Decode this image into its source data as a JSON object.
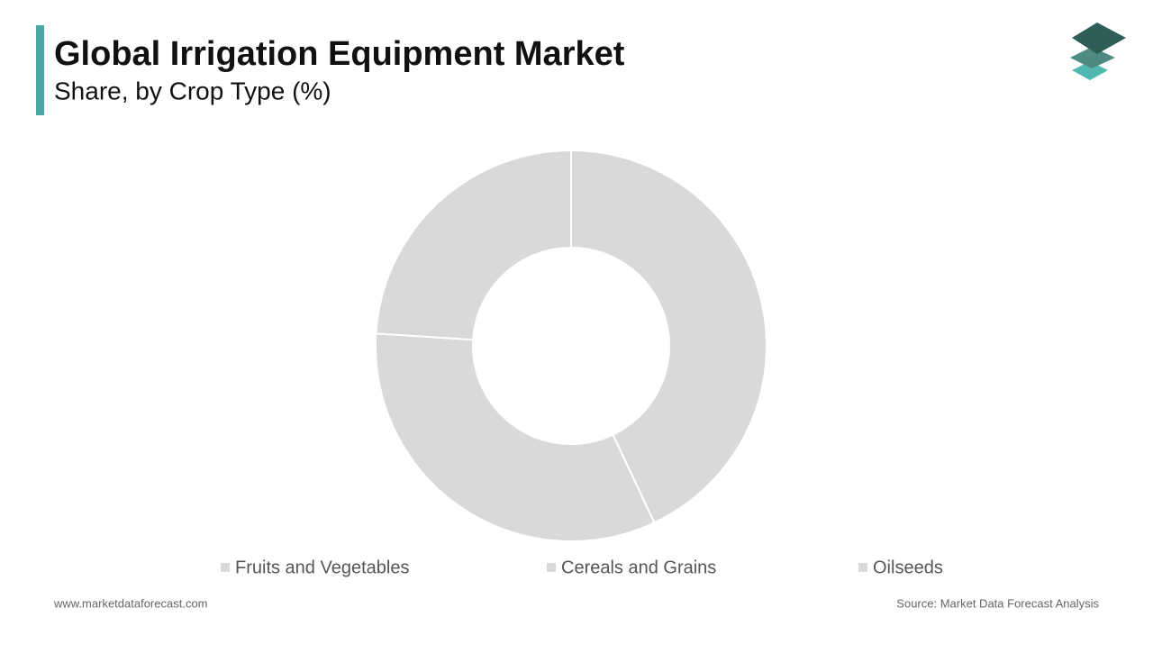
{
  "chart_data": {
    "type": "donut",
    "title": "Global Irrigation Equipment Market",
    "subtitle": "Share, by Crop Type (%)",
    "categories": [
      "Fruits and Vegetables",
      "Cereals and Grains",
      "Oilseeds"
    ],
    "values": [
      43,
      33,
      24
    ],
    "colors": [
      "#d9d9d9",
      "#d9d9d9",
      "#d9d9d9"
    ],
    "website": "www.marketdataforecast.com",
    "source": "Source: Market Data Forecast Analysis"
  }
}
